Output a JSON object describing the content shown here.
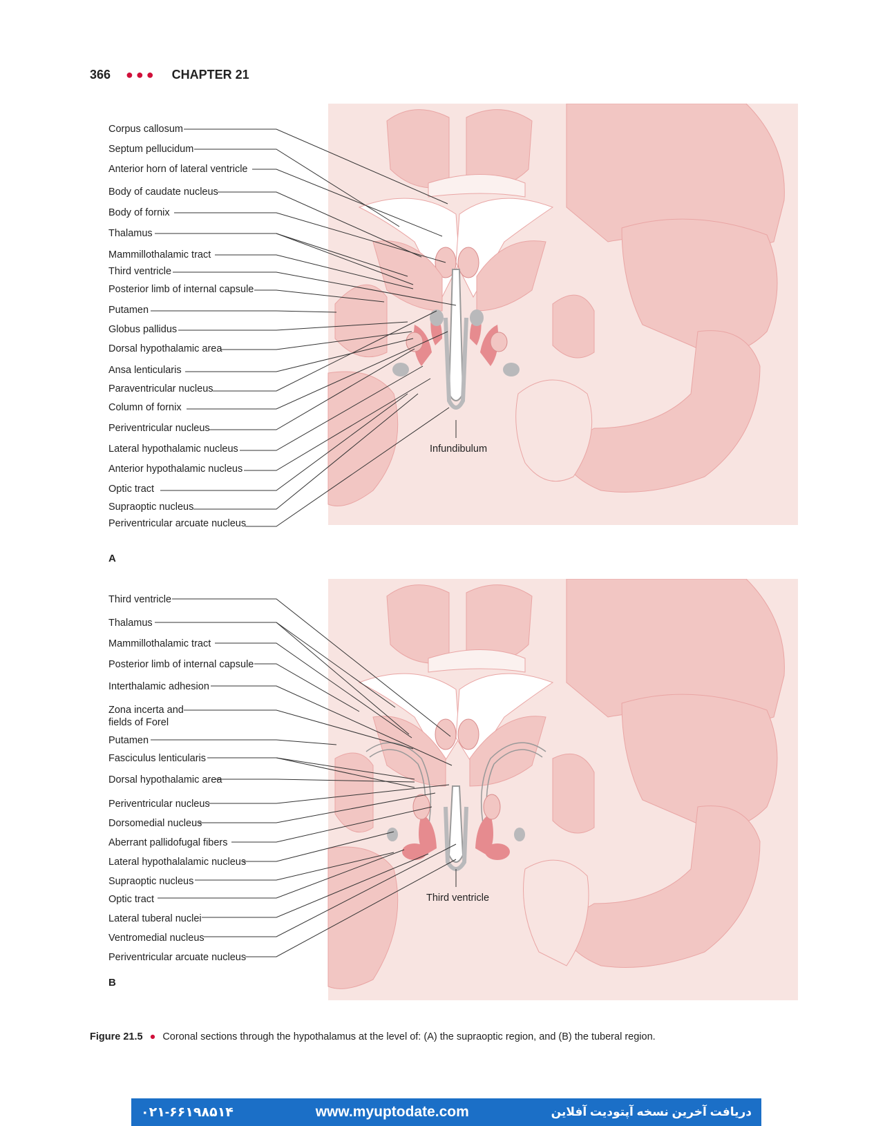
{
  "header": {
    "page_number": "366",
    "dots": "●●●",
    "chapter": "CHAPTER 21"
  },
  "figure_a": {
    "letter": "A",
    "labels": [
      "Corpus callosum",
      "Septum pellucidum",
      "Anterior horn of lateral ventricle",
      "Body of caudate nucleus",
      "Body of fornix",
      "Thalamus",
      "Mammillothalamic tract",
      "Third ventricle",
      "Posterior limb of internal capsule",
      "Putamen",
      "Globus pallidus",
      "Dorsal hypothalamic area",
      "Ansa lenticularis",
      "Paraventricular nucleus",
      "Column of fornix",
      "Periventricular nucleus",
      "Lateral hypothalamic nucleus",
      "Anterior hypothalamic nucleus",
      "Optic tract",
      "Supraoptic nucleus",
      "Periventricular arcuate nucleus"
    ],
    "center_label": "Infundibulum"
  },
  "figure_b": {
    "letter": "B",
    "labels": [
      "Third ventricle",
      "Thalamus",
      "Mammillothalamic tract",
      "Posterior limb of internal capsule",
      "Interthalamic adhesion",
      "Zona incerta and",
      "fields of Forel",
      "Putamen",
      "Fasciculus lenticularis",
      "Dorsal hypothalamic area",
      "Periventricular nucleus",
      "Dorsomedial nucleus",
      "Aberrant pallidofugal fibers",
      "Lateral hypothalalamic nucleus",
      "Supraoptic nucleus",
      "Optic tract",
      "Lateral tuberal nuclei",
      "Ventromedial nucleus",
      "Periventricular arcuate nucleus"
    ],
    "center_label": "Third ventricle"
  },
  "caption": {
    "label": "Figure 21.5",
    "bullet": "●",
    "text": "Coronal sections through the hypothalamus at the level of: (A) the supraoptic region, and (B) the tuberal region."
  },
  "banner": {
    "phone": "۰۲۱-۶۶۱۹۸۵۱۴",
    "url": "www.myuptodate.com",
    "persian_text": "دریافت آخرین نسخه آپتودیت آفلاین"
  },
  "colors": {
    "accent": "#d0103a",
    "tissue_light": "#f8e4e1",
    "tissue_mid": "#f2c6c3",
    "tissue_dark": "#e9a5a4",
    "nucleus": "#e68b8f",
    "grey": "#b9b9bb",
    "banner": "#1b6fc7"
  }
}
